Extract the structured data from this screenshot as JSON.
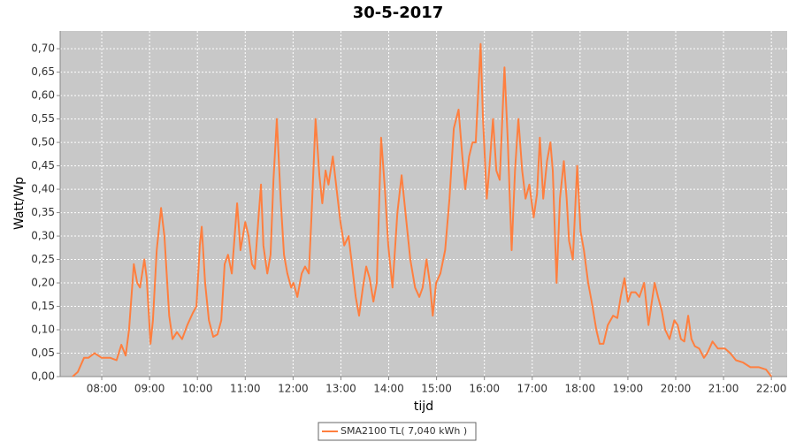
{
  "chart_data": {
    "type": "line",
    "title": "30-5-2017",
    "xlabel": "tijd",
    "ylabel": "Watt/Wp",
    "grid": true,
    "legend": "bottom",
    "xlim": [
      7.13,
      22.33
    ],
    "ylim": [
      0,
      0.738
    ],
    "xticks": [
      {
        "value": 8,
        "label": "08:00"
      },
      {
        "value": 9,
        "label": "09:00"
      },
      {
        "value": 10,
        "label": "10:00"
      },
      {
        "value": 11,
        "label": "11:00"
      },
      {
        "value": 12,
        "label": "12:00"
      },
      {
        "value": 13,
        "label": "13:00"
      },
      {
        "value": 14,
        "label": "14:00"
      },
      {
        "value": 15,
        "label": "15:00"
      },
      {
        "value": 16,
        "label": "16:00"
      },
      {
        "value": 17,
        "label": "17:00"
      },
      {
        "value": 18,
        "label": "18:00"
      },
      {
        "value": 19,
        "label": "19:00"
      },
      {
        "value": 20,
        "label": "20:00"
      },
      {
        "value": 21,
        "label": "21:00"
      },
      {
        "value": 22,
        "label": "22:00"
      }
    ],
    "yticks": [
      {
        "value": 0,
        "label": "0,00"
      },
      {
        "value": 0.05,
        "label": "0,05"
      },
      {
        "value": 0.1,
        "label": "0,10"
      },
      {
        "value": 0.15,
        "label": "0,15"
      },
      {
        "value": 0.2,
        "label": "0,20"
      },
      {
        "value": 0.25,
        "label": "0,25"
      },
      {
        "value": 0.3,
        "label": "0,30"
      },
      {
        "value": 0.35,
        "label": "0,35"
      },
      {
        "value": 0.4,
        "label": "0,40"
      },
      {
        "value": 0.45,
        "label": "0,45"
      },
      {
        "value": 0.5,
        "label": "0,50"
      },
      {
        "value": 0.55,
        "label": "0,55"
      },
      {
        "value": 0.6,
        "label": "0,60"
      },
      {
        "value": 0.65,
        "label": "0,65"
      },
      {
        "value": 0.7,
        "label": "0,70"
      }
    ],
    "x": [
      7.39,
      7.5,
      7.63,
      7.72,
      7.85,
      8,
      8.18,
      8.31,
      8.41,
      8.5,
      8.57,
      8.67,
      8.74,
      8.8,
      8.89,
      8.94,
      9.02,
      9.07,
      9.15,
      9.24,
      9.31,
      9.41,
      9.48,
      9.57,
      9.68,
      9.79,
      9.9,
      9.98,
      10.05,
      10.09,
      10.16,
      10.24,
      10.33,
      10.42,
      10.5,
      10.57,
      10.64,
      10.72,
      10.83,
      10.9,
      11,
      11.07,
      11.14,
      11.2,
      11.27,
      11.33,
      11.38,
      11.46,
      11.53,
      11.59,
      11.66,
      11.74,
      11.81,
      11.88,
      11.96,
      12.01,
      12.09,
      12.18,
      12.25,
      12.33,
      12.38,
      12.47,
      12.55,
      12.61,
      12.68,
      12.74,
      12.83,
      12.9,
      12.99,
      13.07,
      13.16,
      13.23,
      13.31,
      13.38,
      13.46,
      13.53,
      13.6,
      13.68,
      13.75,
      13.84,
      13.92,
      13.99,
      14.08,
      14.18,
      14.27,
      14.36,
      14.45,
      14.55,
      14.64,
      14.71,
      14.79,
      14.86,
      14.92,
      14.99,
      15.08,
      15.18,
      15.27,
      15.36,
      15.46,
      15.53,
      15.6,
      15.68,
      15.75,
      15.82,
      15.92,
      15.97,
      16.05,
      16.1,
      16.18,
      16.25,
      16.32,
      16.42,
      16.49,
      16.57,
      16.64,
      16.71,
      16.79,
      16.86,
      16.94,
      17.03,
      17.1,
      17.16,
      17.23,
      17.31,
      17.38,
      17.43,
      17.51,
      17.58,
      17.66,
      17.72,
      17.77,
      17.85,
      17.94,
      18.01,
      18.08,
      18.17,
      18.26,
      18.34,
      18.41,
      18.49,
      18.58,
      18.69,
      18.78,
      18.85,
      18.93,
      19,
      19.07,
      19.16,
      19.24,
      19.34,
      19.43,
      19.5,
      19.56,
      19.63,
      19.71,
      19.78,
      19.87,
      19.97,
      20.04,
      20.11,
      20.18,
      20.26,
      20.33,
      20.4,
      20.49,
      20.59,
      20.66,
      20.77,
      20.88,
      21.03,
      21.14,
      21.26,
      21.41,
      21.56,
      21.74,
      21.89,
      22
    ],
    "series": [
      {
        "name": "SMA2100 TL( 7,040 kWh )",
        "color": "#ff7f3f",
        "values": [
          0,
          0.01,
          0.04,
          0.04,
          0.05,
          0.04,
          0.04,
          0.035,
          0.068,
          0.045,
          0.1,
          0.24,
          0.2,
          0.19,
          0.25,
          0.21,
          0.07,
          0.12,
          0.27,
          0.36,
          0.3,
          0.13,
          0.08,
          0.095,
          0.08,
          0.11,
          0.135,
          0.15,
          0.28,
          0.32,
          0.2,
          0.12,
          0.085,
          0.09,
          0.12,
          0.24,
          0.26,
          0.22,
          0.37,
          0.27,
          0.33,
          0.3,
          0.24,
          0.23,
          0.33,
          0.41,
          0.28,
          0.22,
          0.26,
          0.42,
          0.55,
          0.38,
          0.26,
          0.22,
          0.19,
          0.2,
          0.17,
          0.22,
          0.235,
          0.22,
          0.33,
          0.55,
          0.43,
          0.37,
          0.44,
          0.41,
          0.47,
          0.41,
          0.33,
          0.28,
          0.3,
          0.24,
          0.17,
          0.13,
          0.19,
          0.235,
          0.21,
          0.16,
          0.2,
          0.51,
          0.4,
          0.28,
          0.19,
          0.35,
          0.43,
          0.34,
          0.25,
          0.19,
          0.17,
          0.19,
          0.25,
          0.2,
          0.13,
          0.2,
          0.22,
          0.27,
          0.38,
          0.53,
          0.57,
          0.48,
          0.4,
          0.47,
          0.5,
          0.5,
          0.71,
          0.55,
          0.38,
          0.44,
          0.55,
          0.44,
          0.42,
          0.66,
          0.5,
          0.27,
          0.44,
          0.55,
          0.44,
          0.38,
          0.41,
          0.34,
          0.39,
          0.51,
          0.38,
          0.46,
          0.5,
          0.44,
          0.2,
          0.38,
          0.46,
          0.38,
          0.29,
          0.25,
          0.45,
          0.31,
          0.27,
          0.2,
          0.15,
          0.1,
          0.07,
          0.07,
          0.11,
          0.13,
          0.125,
          0.17,
          0.21,
          0.16,
          0.18,
          0.18,
          0.17,
          0.2,
          0.11,
          0.16,
          0.2,
          0.17,
          0.14,
          0.1,
          0.08,
          0.12,
          0.11,
          0.08,
          0.075,
          0.13,
          0.08,
          0.065,
          0.06,
          0.04,
          0.05,
          0.075,
          0.06,
          0.06,
          0.05,
          0.035,
          0.03,
          0.02,
          0.02,
          0.015,
          0
        ]
      }
    ]
  }
}
